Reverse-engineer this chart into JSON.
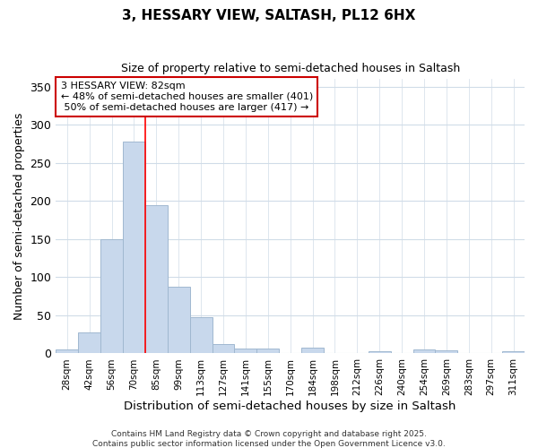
{
  "title": "3, HESSARY VIEW, SALTASH, PL12 6HX",
  "subtitle": "Size of property relative to semi-detached houses in Saltash",
  "xlabel": "Distribution of semi-detached houses by size in Saltash",
  "ylabel": "Number of semi-detached properties",
  "bar_labels": [
    "28sqm",
    "42sqm",
    "56sqm",
    "70sqm",
    "85sqm",
    "99sqm",
    "113sqm",
    "127sqm",
    "141sqm",
    "155sqm",
    "170sqm",
    "184sqm",
    "198sqm",
    "212sqm",
    "226sqm",
    "240sqm",
    "254sqm",
    "269sqm",
    "283sqm",
    "297sqm",
    "311sqm"
  ],
  "bar_values": [
    5,
    28,
    150,
    278,
    195,
    87,
    48,
    12,
    6,
    6,
    0,
    8,
    0,
    0,
    3,
    0,
    5,
    4,
    1,
    0,
    3
  ],
  "bar_color": "#c8d8ec",
  "bar_edgecolor": "#a0b8d0",
  "property_label": "3 HESSARY VIEW: 82sqm",
  "pct_smaller": 48,
  "n_smaller": 401,
  "pct_larger": 50,
  "n_larger": 417,
  "vline_x_index": 3.5,
  "annotation_box_facecolor": "#ffffff",
  "annotation_box_edgecolor": "#cc0000",
  "ylim": [
    0,
    360
  ],
  "yticks": [
    0,
    50,
    100,
    150,
    200,
    250,
    300,
    350
  ],
  "bg_color": "#ffffff",
  "grid_color": "#d0dce8",
  "footer_line1": "Contains HM Land Registry data © Crown copyright and database right 2025.",
  "footer_line2": "Contains public sector information licensed under the Open Government Licence v3.0."
}
